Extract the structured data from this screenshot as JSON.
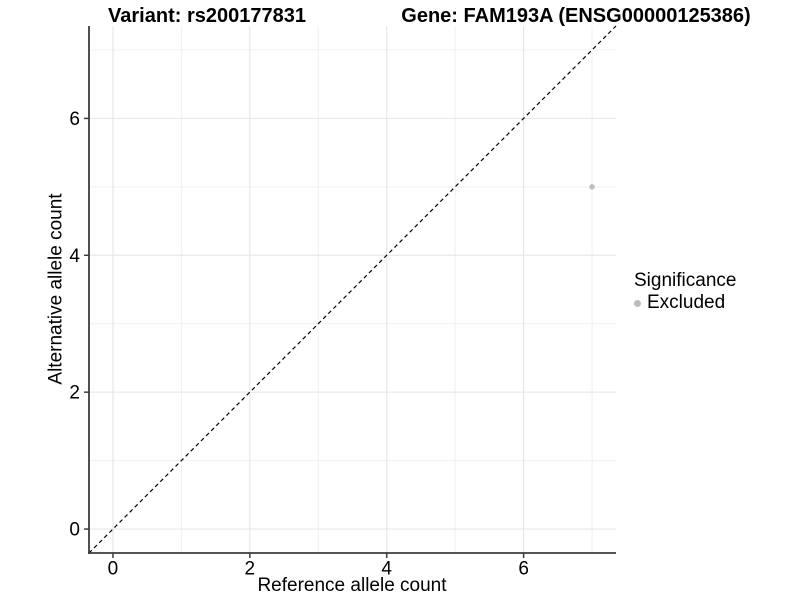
{
  "header": {
    "variant_title": "Variant: rs200177831",
    "gene_title": "Gene: FAM193A (ENSG00000125386)"
  },
  "colors": {
    "background": "#ffffff",
    "grid_major": "#e4e4e4",
    "grid_minor": "#f0f0f0",
    "axis_line": "#3d3d3d",
    "identity_line": "#000000",
    "excluded_point": "#bdbdbd",
    "text": "#000000"
  },
  "chart_data": {
    "type": "scatter",
    "title": "",
    "xlabel": "Reference allele count",
    "ylabel": "Alternative allele count",
    "xlim": [
      -0.35,
      7.35
    ],
    "ylim": [
      -0.35,
      7.35
    ],
    "x_breaks": [
      0,
      2,
      4,
      6
    ],
    "y_breaks": [
      0,
      2,
      4,
      6
    ],
    "x_minor_breaks": [
      1,
      3,
      5,
      7
    ],
    "y_minor_breaks": [
      1,
      3,
      5,
      7
    ],
    "grid": true,
    "identity_line": {
      "style": "dashed",
      "from": -0.35,
      "to": 7.35
    },
    "series": [
      {
        "name": "Excluded",
        "color": "#bdbdbd",
        "points": [
          {
            "x": 7,
            "y": 5
          }
        ]
      }
    ],
    "legend": {
      "title": "Significance",
      "position": "right",
      "items": [
        {
          "label": "Excluded",
          "color": "#bdbdbd"
        }
      ]
    }
  }
}
